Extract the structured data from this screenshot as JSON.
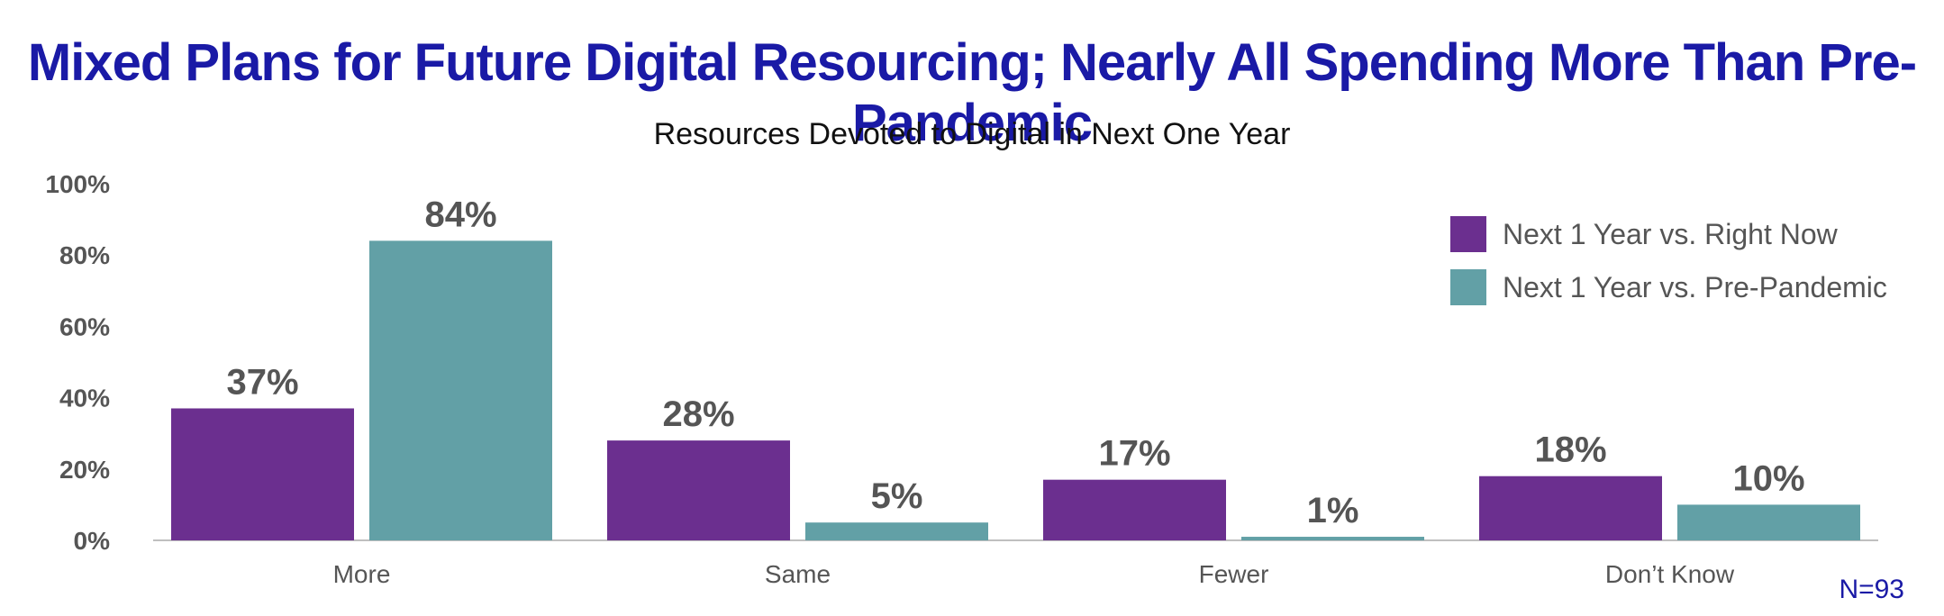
{
  "title": "Mixed Plans for Future Digital Resourcing; Nearly All Spending More Than Pre-Pandemic",
  "subtitle": "Resources Devoted to Digital in Next One Year",
  "note": "N=93",
  "colors": {
    "series1": "#6b2f8f",
    "series2": "#62a0a6",
    "axis_text": "#555555",
    "title": "#1a1aa6"
  },
  "chart_data": {
    "type": "bar",
    "title": "Resources Devoted to Digital in Next One Year",
    "categories": [
      "More",
      "Same",
      "Fewer",
      "Don’t Know"
    ],
    "series": [
      {
        "name": "Next 1 Year vs. Right Now",
        "values": [
          37,
          28,
          17,
          18
        ],
        "labels": [
          "37%",
          "28%",
          "17%",
          "18%"
        ]
      },
      {
        "name": "Next 1 Year vs. Pre-Pandemic",
        "values": [
          84,
          5,
          1,
          10
        ],
        "labels": [
          "84%",
          "5%",
          "1%",
          "10%"
        ]
      }
    ],
    "yticks": [
      "0%",
      "20%",
      "40%",
      "60%",
      "80%",
      "100%"
    ],
    "ylim": [
      0,
      100
    ],
    "grid": false,
    "legend_position": "top-right"
  }
}
